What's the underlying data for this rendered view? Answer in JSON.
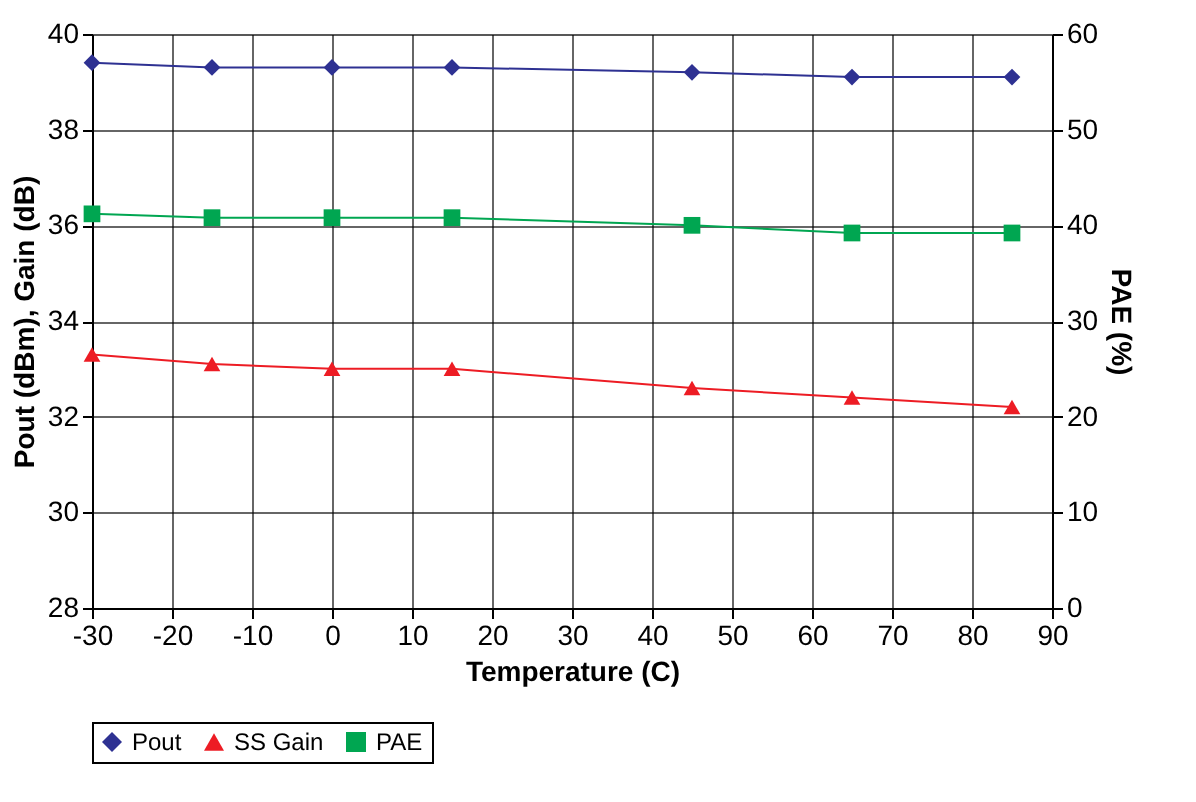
{
  "chart_data": {
    "type": "line",
    "xlabel": "Temperature (C)",
    "ylabel": "Pout (dBm), Gain (dB)",
    "y2label": "PAE (%)",
    "x": [
      -30,
      -15,
      0,
      15,
      45,
      65,
      85
    ],
    "xlim": [
      -30,
      90
    ],
    "xticks": [
      -30,
      -20,
      -10,
      0,
      10,
      20,
      30,
      40,
      50,
      60,
      70,
      80,
      90
    ],
    "ylim": [
      28,
      40
    ],
    "yticks": [
      28,
      30,
      32,
      34,
      36,
      38,
      40
    ],
    "y2lim": [
      0,
      60
    ],
    "y2ticks": [
      0,
      10,
      20,
      30,
      40,
      50,
      60
    ],
    "grid": true,
    "legend": "bottom",
    "series": [
      {
        "name": "Pout",
        "color": "#2e3192",
        "marker": "diamond",
        "values": [
          39.4,
          39.3,
          39.3,
          39.3,
          39.2,
          39.1,
          39.1
        ]
      },
      {
        "name": "SS Gain",
        "color": "#ed1c24",
        "marker": "triangle",
        "values": [
          33.3,
          33.1,
          33.0,
          33.0,
          32.6,
          32.4,
          32.2
        ]
      },
      {
        "name": "PAE",
        "color": "#00a651",
        "marker": "square",
        "axis": "y2",
        "values": [
          41.2,
          40.8,
          40.8,
          40.8,
          40.0,
          39.2,
          39.2
        ]
      }
    ]
  }
}
